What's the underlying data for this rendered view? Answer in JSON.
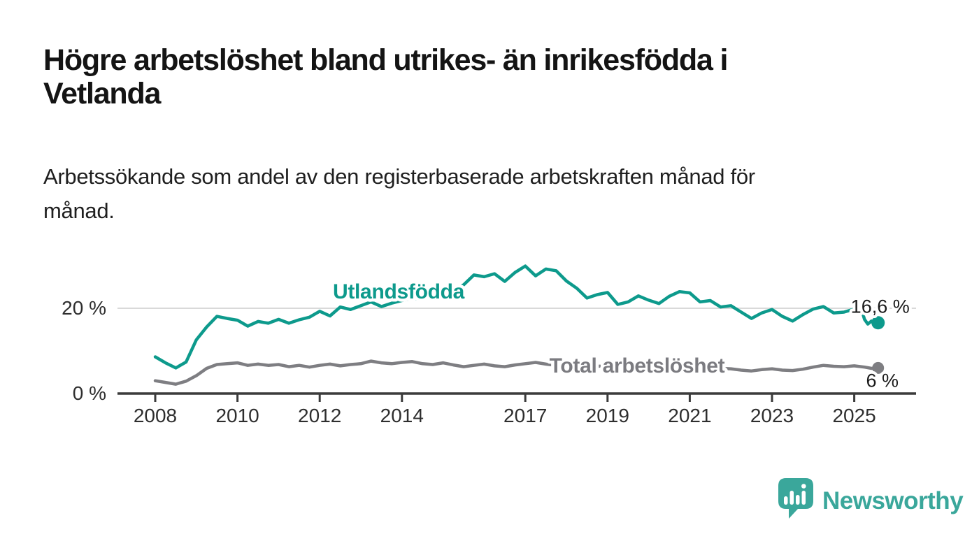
{
  "header": {
    "title_lines": [
      "Högre arbetslöshet bland utrikes- än inrikesfödda i",
      "Vetlanda"
    ],
    "subtitle_lines": [
      "Arbetssökande som andel av den registerbaserade arbetskraften månad för",
      "månad."
    ]
  },
  "chart_data": {
    "type": "line",
    "title": "Högre arbetslöshet bland utrikes- än inrikesfödda i Vetlanda",
    "subtitle": "Arbetssökande som andel av den registerbaserade arbetskraften månad för månad.",
    "unit": "%",
    "xlim": [
      2008,
      2025.58
    ],
    "ylim": [
      0,
      32
    ],
    "x_ticks": [
      2008,
      2010,
      2012,
      2014,
      2017,
      2019,
      2021,
      2023,
      2025
    ],
    "y_ticks": [
      {
        "value": 0,
        "label": "0 %"
      },
      {
        "value": 20,
        "label": "20 %"
      }
    ],
    "gridlines": [
      20
    ],
    "gridline_color": "#d9d9d9",
    "axis_color": "#3b3b3b",
    "tick_label_color": "#2e2e2e",
    "annotation_color": "#1a1a1a",
    "legend_position": "inline labels on lines",
    "series": [
      {
        "name": "Total arbetslöshet",
        "color": "#7e7e82",
        "label_color": "#7b7b80",
        "end_label": "6 %",
        "x": [
          2008.0,
          2008.25,
          2008.5,
          2008.75,
          2009.0,
          2009.25,
          2009.5,
          2009.75,
          2010.0,
          2010.25,
          2010.5,
          2010.75,
          2011.0,
          2011.25,
          2011.5,
          2011.75,
          2012.0,
          2012.25,
          2012.5,
          2012.75,
          2013.0,
          2013.25,
          2013.5,
          2013.75,
          2014.0,
          2014.25,
          2014.5,
          2014.75,
          2015.0,
          2015.25,
          2015.5,
          2015.75,
          2016.0,
          2016.25,
          2016.5,
          2016.75,
          2017.0,
          2017.25,
          2017.5,
          2017.75,
          2018.0,
          2018.25,
          2018.5,
          2018.75,
          2019.0,
          2019.25,
          2019.5,
          2019.75,
          2020.0,
          2020.25,
          2020.5,
          2020.75,
          2021.0,
          2021.25,
          2021.5,
          2021.75,
          2022.0,
          2022.25,
          2022.5,
          2022.75,
          2023.0,
          2023.25,
          2023.5,
          2023.75,
          2024.0,
          2024.25,
          2024.5,
          2024.75,
          2025.0,
          2025.25,
          2025.42,
          2025.58
        ],
        "values": [
          3.0,
          2.6,
          2.2,
          2.9,
          4.2,
          5.9,
          6.8,
          7.0,
          7.2,
          6.6,
          6.9,
          6.6,
          6.8,
          6.3,
          6.6,
          6.2,
          6.6,
          6.9,
          6.5,
          6.8,
          7.0,
          7.6,
          7.2,
          7.0,
          7.3,
          7.5,
          7.0,
          6.8,
          7.2,
          6.7,
          6.3,
          6.6,
          6.9,
          6.5,
          6.3,
          6.7,
          7.0,
          7.3,
          6.9,
          6.6,
          6.8,
          6.4,
          6.2,
          6.4,
          6.5,
          6.2,
          6.3,
          6.5,
          6.6,
          7.0,
          7.4,
          7.2,
          7.0,
          6.6,
          6.3,
          5.9,
          5.8,
          5.5,
          5.3,
          5.6,
          5.8,
          5.5,
          5.4,
          5.7,
          6.2,
          6.6,
          6.4,
          6.3,
          6.5,
          6.2,
          5.9,
          6.0
        ]
      },
      {
        "name": "Utlandsfödda",
        "color": "#0d9a8c",
        "label_color": "#0d9a8c",
        "end_label": "16,6 %",
        "x": [
          2008.0,
          2008.25,
          2008.5,
          2008.75,
          2009.0,
          2009.25,
          2009.5,
          2009.75,
          2010.0,
          2010.25,
          2010.5,
          2010.75,
          2011.0,
          2011.25,
          2011.5,
          2011.75,
          2012.0,
          2012.25,
          2012.5,
          2012.75,
          2013.0,
          2013.25,
          2013.5,
          2013.75,
          2014.0,
          2014.25,
          2014.5,
          2014.75,
          2015.0,
          2015.25,
          2015.5,
          2015.75,
          2016.0,
          2016.25,
          2016.5,
          2016.75,
          2017.0,
          2017.25,
          2017.5,
          2017.75,
          2018.0,
          2018.25,
          2018.5,
          2018.75,
          2019.0,
          2019.25,
          2019.5,
          2019.75,
          2020.0,
          2020.25,
          2020.5,
          2020.75,
          2021.0,
          2021.25,
          2021.5,
          2021.75,
          2022.0,
          2022.25,
          2022.5,
          2022.75,
          2023.0,
          2023.25,
          2023.5,
          2023.75,
          2024.0,
          2024.25,
          2024.5,
          2024.75,
          2025.0,
          2025.17,
          2025.25,
          2025.33,
          2025.42,
          2025.5,
          2025.58
        ],
        "values": [
          8.6,
          7.2,
          6.0,
          7.4,
          12.6,
          15.6,
          18.1,
          17.6,
          17.2,
          15.8,
          16.9,
          16.5,
          17.4,
          16.5,
          17.3,
          17.9,
          19.3,
          18.2,
          20.3,
          19.7,
          20.6,
          21.5,
          20.4,
          21.2,
          21.8,
          22.4,
          22.0,
          23.2,
          23.1,
          24.1,
          25.5,
          27.8,
          27.4,
          28.1,
          26.3,
          28.4,
          29.9,
          27.6,
          29.2,
          28.8,
          26.4,
          24.7,
          22.4,
          23.2,
          23.7,
          20.9,
          21.5,
          22.9,
          21.9,
          21.1,
          22.8,
          23.9,
          23.6,
          21.5,
          21.8,
          20.3,
          20.6,
          19.1,
          17.6,
          18.9,
          19.7,
          18.1,
          17.0,
          18.5,
          19.8,
          20.4,
          18.9,
          19.1,
          19.8,
          19.9,
          17.4,
          16.3,
          17.0,
          16.2,
          16.6
        ]
      }
    ]
  },
  "footer": {
    "brand": "Newsworthy",
    "brand_color": "#3aa79b"
  }
}
